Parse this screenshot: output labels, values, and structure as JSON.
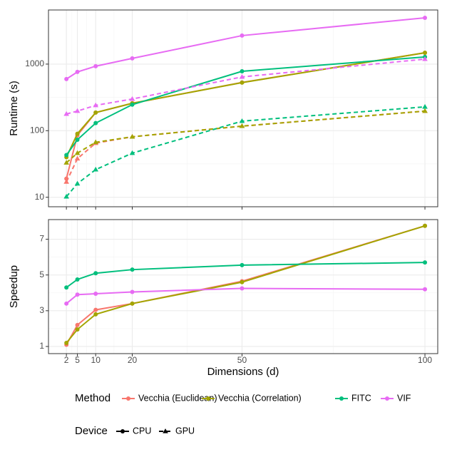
{
  "chart_data": [
    {
      "type": "line",
      "y_label": "Runtime (s)",
      "log_y": true,
      "grid": true,
      "show_x_labels": false,
      "x": [
        2,
        5,
        10,
        20,
        50,
        100
      ],
      "xlim": [
        -2.9,
        103.5
      ],
      "xticks": [
        2,
        5,
        10,
        20,
        50,
        100
      ],
      "ylim": [
        7.2,
        6500
      ],
      "yticks": [
        10,
        100,
        {
          "value": 1000,
          "label": "1000"
        }
      ],
      "series": [
        {
          "name": "Vecchia (Euclidean)",
          "device": "CPU",
          "color": "#F8766D",
          "values": [
            19,
            85,
            187,
            258,
            530,
            1480
          ]
        },
        {
          "name": "Vecchia (Euclidean)",
          "device": "GPU",
          "color": "#F8766D",
          "values": [
            17,
            38,
            65,
            81,
            117,
            197
          ]
        },
        {
          "name": "Vecchia (Correlation)",
          "device": "CPU",
          "color": "#A3A500",
          "values": [
            40,
            90,
            187,
            258,
            527,
            1480
          ]
        },
        {
          "name": "Vecchia (Correlation)",
          "device": "GPU",
          "color": "#A3A500",
          "values": [
            33,
            46,
            67,
            81,
            117,
            197
          ]
        },
        {
          "name": "FITC",
          "device": "CPU",
          "color": "#00BF7D",
          "values": [
            43,
            73,
            130,
            246,
            780,
            1280
          ]
        },
        {
          "name": "FITC",
          "device": "GPU",
          "color": "#00BF7D",
          "values": [
            10.2,
            16,
            26,
            46,
            139,
            228
          ]
        },
        {
          "name": "VIF",
          "device": "CPU",
          "color": "#E76BF3",
          "values": [
            596,
            763,
            930,
            1218,
            2680,
            4960
          ]
        },
        {
          "name": "VIF",
          "device": "GPU",
          "color": "#E76BF3",
          "values": [
            178,
            197,
            240,
            299,
            642,
            1188
          ]
        }
      ]
    },
    {
      "type": "line",
      "y_label": "Speedup",
      "x_label": "Dimensions (d)",
      "log_y": false,
      "grid": true,
      "show_x_labels": true,
      "x": [
        2,
        5,
        10,
        20,
        50,
        100
      ],
      "xlim": [
        -2.9,
        103.5
      ],
      "xticks": [
        2,
        5,
        10,
        20,
        50,
        100
      ],
      "ylim": [
        0.6,
        8.1
      ],
      "yticks": [
        1,
        3,
        5,
        7
      ],
      "series": [
        {
          "name": "Vecchia (Euclidean)",
          "device": "CPU",
          "color": "#F8766D",
          "values": [
            1.1,
            2.2,
            3.05,
            3.4,
            4.65,
            7.75
          ]
        },
        {
          "name": "Vecchia (Correlation)",
          "device": "CPU",
          "color": "#A3A500",
          "values": [
            1.2,
            1.95,
            2.8,
            3.4,
            4.6,
            7.75
          ]
        },
        {
          "name": "FITC",
          "device": "CPU",
          "color": "#00BF7D",
          "values": [
            4.3,
            4.75,
            5.1,
            5.3,
            5.55,
            5.7
          ]
        },
        {
          "name": "VIF",
          "device": "CPU",
          "color": "#E76BF3",
          "values": [
            3.4,
            3.9,
            3.95,
            4.05,
            4.25,
            4.2
          ]
        }
      ]
    }
  ],
  "legends": [
    {
      "title": "Method",
      "items": [
        {
          "name": "Vecchia (Euclidean)",
          "color": "#F8766D"
        },
        {
          "name": "Vecchia (Correlation)",
          "color": "#A3A500"
        },
        {
          "name": "FITC",
          "color": "#00BF7D"
        },
        {
          "name": "VIF",
          "color": "#E76BF3"
        }
      ]
    },
    {
      "title": "Device",
      "items": [
        {
          "name": "CPU",
          "shape": "circle"
        },
        {
          "name": "GPU",
          "shape": "triangle"
        }
      ]
    }
  ]
}
